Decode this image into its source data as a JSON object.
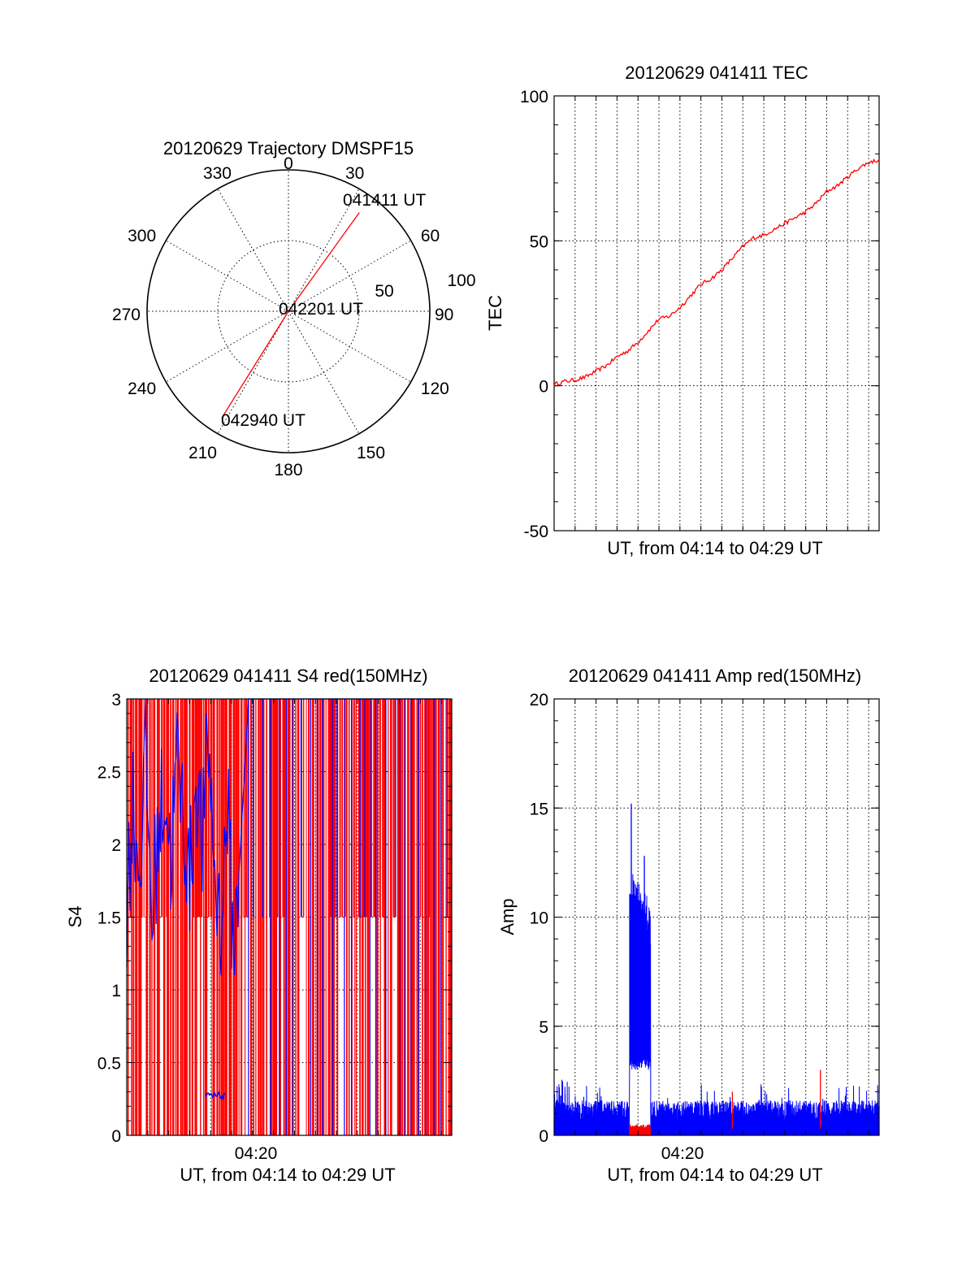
{
  "colors": {
    "red": "#ff0000",
    "blue": "#0000ff",
    "axis": "#000000"
  },
  "chart_data": [
    {
      "id": "trajectory",
      "type": "polar-line",
      "title": "20120629 Trajectory DMSPF15",
      "azimuth_labels": [
        "0",
        "30",
        "60",
        "90",
        "120",
        "150",
        "180",
        "210",
        "240",
        "270",
        "300",
        "330"
      ],
      "radius_labels": [
        "50",
        "100"
      ],
      "rlim": [
        0,
        100
      ],
      "annotations": [
        "041411 UT",
        "042201 UT",
        "042940 UT"
      ],
      "track": [
        {
          "label": "041411 UT",
          "azimuth_deg": 35.7,
          "zenith_angle": 86
        },
        {
          "label": "042201 UT",
          "azimuth_deg": 0,
          "zenith_angle": 0
        },
        {
          "label": "042940 UT",
          "azimuth_deg": 212,
          "zenith_angle": 89
        }
      ]
    },
    {
      "id": "tec",
      "type": "line",
      "title": "20120629 041411 TEC",
      "xlabel": "UT, from 04:14 to 04:29 UT",
      "ylabel": "TEC",
      "ylim": [
        -50,
        100
      ],
      "yticks": [
        "-50",
        "0",
        "50",
        "100"
      ],
      "xlim_minutes": [
        0,
        15.5
      ],
      "series": [
        {
          "color": "red",
          "x_minutes": [
            0,
            0.5,
            1,
            1.5,
            2,
            2.5,
            3,
            3.5,
            4,
            4.5,
            5,
            5.5,
            6,
            6.5,
            7,
            7.5,
            8,
            8.5,
            9,
            9.5,
            10,
            10.5,
            11,
            11.5,
            12,
            12.5,
            13,
            13.5,
            14,
            14.5,
            15,
            15.5
          ],
          "values": [
            0.5,
            1.5,
            2,
            3,
            5,
            7,
            10,
            12,
            15,
            19,
            23,
            24,
            27,
            31,
            35,
            37,
            40,
            44,
            48,
            51,
            52,
            54,
            56,
            58,
            60,
            63,
            67,
            69,
            72,
            75,
            77,
            78
          ]
        }
      ]
    },
    {
      "id": "s4",
      "type": "line",
      "title": "20120629 041411 S4 red(150MHz)",
      "xlabel": "UT, from 04:14 to 04:29 UT",
      "ylabel": "S4",
      "ylim": [
        0,
        3
      ],
      "yticks": [
        "0",
        "0.5",
        "1",
        "1.5",
        "2",
        "2.5",
        "3"
      ],
      "xticks": [
        "04:20"
      ],
      "xlim_minutes": [
        0,
        15.5
      ],
      "series": [
        {
          "color": "red",
          "pattern": "dense vertical spikes between 0 and 3 over the whole interval"
        },
        {
          "color": "blue",
          "pattern": "noisy fluctuating trace",
          "x_minutes": [
            0,
            0.3,
            0.6,
            0.9,
            1.2,
            1.5,
            1.8,
            2.1,
            2.4,
            2.7,
            3,
            3.3,
            3.6,
            3.9,
            4.2,
            4.5,
            4.8,
            5.1,
            5.4
          ],
          "values": [
            1.6,
            2.3,
            1.8,
            2.6,
            1.5,
            2.1,
            2.4,
            1.9,
            2.6,
            2.2,
            1.7,
            2.5,
            2.0,
            2.7,
            1.8,
            1.4,
            2.3,
            1.2,
            1.9
          ]
        }
      ]
    },
    {
      "id": "amp",
      "type": "line",
      "title": "20120629 041411 Amp red(150MHz)",
      "xlabel": "UT, from 04:14 to 04:29 UT",
      "ylabel": "Amp",
      "ylim": [
        0,
        20
      ],
      "yticks": [
        "0",
        "5",
        "10",
        "15",
        "20"
      ],
      "xticks": [
        "04:20"
      ],
      "xlim_minutes": [
        0,
        15.5
      ],
      "series": [
        {
          "color": "blue",
          "baseline": 1.0,
          "burst_start_minutes": 3.6,
          "burst_end_minutes": 4.6,
          "burst_peak": 15.2,
          "burst_level": 10.5
        },
        {
          "color": "red",
          "level_during_burst": 0.3,
          "spike_minutes": [
            8.5,
            12.7
          ],
          "spike_values": [
            2.0,
            3.0
          ]
        }
      ]
    }
  ]
}
